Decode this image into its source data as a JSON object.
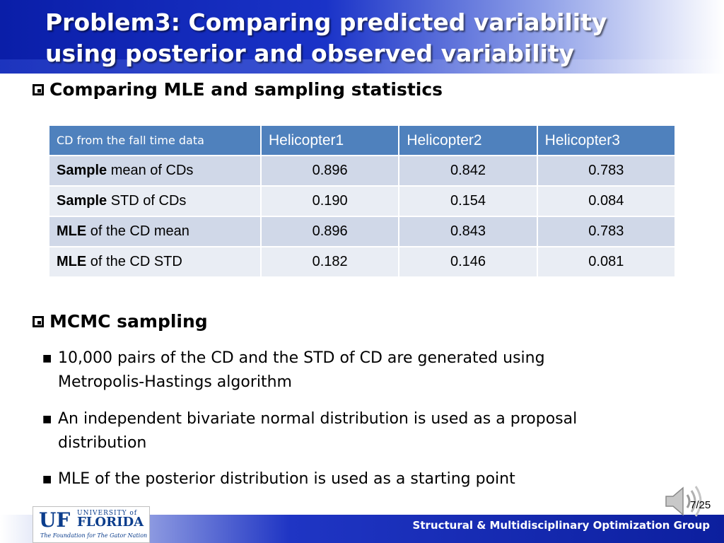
{
  "header": {
    "title_line1": "Problem3: Comparing predicted variability",
    "title_line2": "using posterior and observed variability"
  },
  "section1": {
    "heading": "Comparing MLE and sampling statistics"
  },
  "table": {
    "headers": [
      "CD from the fall time data",
      "Helicopter1",
      "Helicopter2",
      "Helicopter3"
    ],
    "rows": [
      {
        "bold": "Sample",
        "rest": " mean of CDs",
        "values": [
          "0.896",
          "0.842",
          "0.783"
        ]
      },
      {
        "bold": "Sample",
        "rest": " STD of CDs",
        "values": [
          "0.190",
          "0.154",
          "0.084"
        ]
      },
      {
        "bold": "MLE",
        "rest": " of the CD mean",
        "values": [
          "0.896",
          "0.843",
          "0.783"
        ]
      },
      {
        "bold": "MLE",
        "rest": " of the CD STD",
        "values": [
          "0.182",
          "0.146",
          "0.081"
        ]
      }
    ]
  },
  "section2": {
    "heading": "MCMC sampling",
    "bullets": [
      {
        "line1": "10,000 pairs of the CD and the STD of CD are generated using",
        "line2": "Metropolis-Hastings algorithm"
      },
      {
        "line1": "An independent bivariate normal distribution is used as a proposal",
        "line2": "distribution"
      },
      {
        "line1": "MLE of the posterior distribution is used as a starting point",
        "line2": ""
      }
    ]
  },
  "footer": {
    "group": "Structural & Multidisciplinary Optimization Group",
    "page": "7/25"
  },
  "logo": {
    "uf": "UF",
    "university_of": "UNIVERSITY of",
    "florida": "FLORIDA",
    "tagline": "The Foundation for The Gator Nation"
  },
  "icons": {
    "speaker": "speaker-icon",
    "bullet_box": "checkbox-bullet-icon",
    "sub_bullet": "square-bullet-icon"
  },
  "colors": {
    "header_blue": "#0a1ea8",
    "table_header": "#4f81bd",
    "row_odd": "#d0d8e8",
    "row_even": "#e9edf4"
  }
}
